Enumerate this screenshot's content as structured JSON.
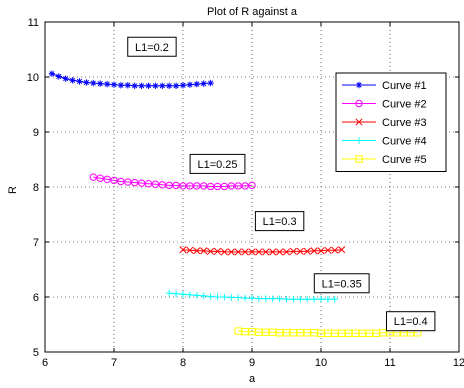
{
  "chart_data": {
    "type": "line",
    "title": "Plot of R against a",
    "xlabel": "a",
    "ylabel": "R",
    "xlim": [
      6,
      12
    ],
    "ylim": [
      5,
      11
    ],
    "xticks": [
      "6",
      "7",
      "8",
      "9",
      "10",
      "11",
      "12"
    ],
    "yticks": [
      "5",
      "6",
      "7",
      "8",
      "9",
      "10",
      "11"
    ],
    "grid": true,
    "legend_position": "right",
    "series": [
      {
        "name": "Curve #1",
        "color": "#0000ff",
        "marker": "asterisk",
        "x": [
          6.1,
          6.2,
          6.3,
          6.4,
          6.5,
          6.6,
          6.7,
          6.8,
          6.9,
          7.0,
          7.1,
          7.2,
          7.3,
          7.4,
          7.5,
          7.6,
          7.7,
          7.8,
          7.9,
          8.0,
          8.1,
          8.2,
          8.3,
          8.4
        ],
        "y": [
          10.06,
          10.01,
          9.97,
          9.94,
          9.92,
          9.9,
          9.89,
          9.88,
          9.87,
          9.86,
          9.85,
          9.85,
          9.84,
          9.84,
          9.84,
          9.84,
          9.84,
          9.84,
          9.84,
          9.85,
          9.86,
          9.87,
          9.88,
          9.89
        ]
      },
      {
        "name": "Curve #2",
        "color": "#ff00ff",
        "marker": "circle",
        "x": [
          6.7,
          6.8,
          6.9,
          7.0,
          7.1,
          7.2,
          7.3,
          7.4,
          7.5,
          7.6,
          7.7,
          7.8,
          7.9,
          8.0,
          8.1,
          8.2,
          8.3,
          8.4,
          8.5,
          8.6,
          8.7,
          8.8,
          8.9,
          9.0
        ],
        "y": [
          8.18,
          8.16,
          8.14,
          8.12,
          8.1,
          8.09,
          8.08,
          8.07,
          8.06,
          8.05,
          8.04,
          8.03,
          8.03,
          8.02,
          8.02,
          8.02,
          8.02,
          8.01,
          8.01,
          8.01,
          8.02,
          8.02,
          8.02,
          8.03
        ]
      },
      {
        "name": "Curve #3",
        "color": "#ff0000",
        "marker": "x",
        "x": [
          8.0,
          8.1,
          8.2,
          8.3,
          8.4,
          8.5,
          8.6,
          8.7,
          8.8,
          8.9,
          9.0,
          9.1,
          9.2,
          9.3,
          9.4,
          9.5,
          9.6,
          9.7,
          9.8,
          9.9,
          10.0,
          10.1,
          10.2,
          10.3
        ],
        "y": [
          6.86,
          6.85,
          6.84,
          6.84,
          6.83,
          6.83,
          6.82,
          6.82,
          6.82,
          6.82,
          6.82,
          6.82,
          6.82,
          6.82,
          6.82,
          6.82,
          6.83,
          6.83,
          6.83,
          6.84,
          6.84,
          6.85,
          6.85,
          6.86
        ]
      },
      {
        "name": "Curve #4",
        "color": "#00ffff",
        "marker": "plus",
        "x": [
          7.8,
          7.9,
          8.0,
          8.1,
          8.2,
          8.3,
          8.4,
          8.5,
          8.6,
          8.7,
          8.8,
          8.9,
          9.0,
          9.1,
          9.2,
          9.3,
          9.4,
          9.5,
          9.6,
          9.7,
          9.8,
          9.9,
          10.0,
          10.1,
          10.2
        ],
        "y": [
          6.07,
          6.06,
          6.05,
          6.04,
          6.03,
          6.02,
          6.01,
          6.0,
          6.0,
          5.99,
          5.99,
          5.98,
          5.98,
          5.97,
          5.97,
          5.97,
          5.97,
          5.96,
          5.96,
          5.96,
          5.96,
          5.96,
          5.96,
          5.96,
          5.96
        ]
      },
      {
        "name": "Curve #5",
        "color": "#ffff00",
        "marker": "square",
        "x": [
          8.8,
          8.9,
          9.0,
          9.1,
          9.2,
          9.3,
          9.4,
          9.5,
          9.6,
          9.7,
          9.8,
          9.9,
          10.0,
          10.1,
          10.2,
          10.3,
          10.4,
          10.5,
          10.6,
          10.7,
          10.8,
          10.9,
          11.0,
          11.1,
          11.2,
          11.3,
          11.4
        ],
        "y": [
          5.38,
          5.37,
          5.37,
          5.36,
          5.36,
          5.36,
          5.35,
          5.35,
          5.35,
          5.35,
          5.35,
          5.35,
          5.34,
          5.34,
          5.34,
          5.34,
          5.34,
          5.34,
          5.34,
          5.34,
          5.34,
          5.35,
          5.35,
          5.35,
          5.35,
          5.35,
          5.35
        ]
      }
    ],
    "annotations": [
      {
        "text": "L1=0.2",
        "x": 7.55,
        "y": 10.55
      },
      {
        "text": "L1=0.25",
        "x": 8.5,
        "y": 8.42
      },
      {
        "text": "L1=0.3",
        "x": 9.4,
        "y": 7.38
      },
      {
        "text": "L1=0.35",
        "x": 10.3,
        "y": 6.25
      },
      {
        "text": "L1=0.4",
        "x": 11.3,
        "y": 5.56
      }
    ]
  }
}
